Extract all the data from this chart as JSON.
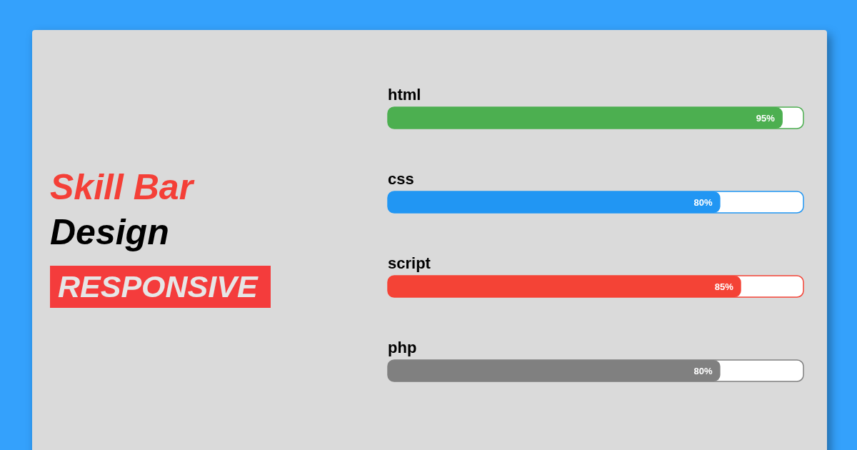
{
  "chart_data": {
    "type": "bar",
    "orientation": "horizontal",
    "title": "Skill Bar Design",
    "subtitle": "RESPONSIVE",
    "categories": [
      "html",
      "css",
      "script",
      "php"
    ],
    "values": [
      95,
      80,
      85,
      80
    ],
    "colors": [
      "#4caf50",
      "#2196f3",
      "#f44336",
      "#808080"
    ],
    "value_labels": [
      "95%",
      "80%",
      "85%",
      "80%"
    ],
    "xlim": [
      0,
      100
    ],
    "tick_labels": "y"
  }
}
